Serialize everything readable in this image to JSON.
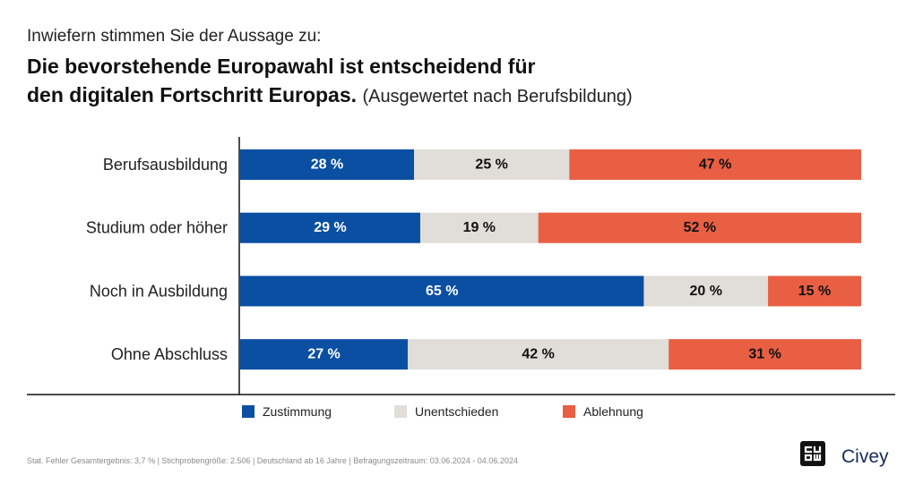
{
  "kicker": "Inwiefern stimmen Sie der Aussage zu:",
  "title_line1": "Die bevorstehende Europawahl ist entscheidend für",
  "title_line2": "den digitalen Fortschritt Europas.",
  "subtitle": "(Ausgewertet nach Berufsbildung)",
  "chart_data": {
    "type": "bar",
    "orientation": "horizontal",
    "stacked": true,
    "normalized_to": 100,
    "value_suffix": " %",
    "categories": [
      "Berufsausbildung",
      "Studium oder höher",
      "Noch in Ausbildung",
      "Ohne Abschluss"
    ],
    "series": [
      {
        "name": "Zustimmung",
        "values": [
          28,
          29,
          65,
          27
        ],
        "color": "#0a4fa2",
        "label_color": "#ffffff"
      },
      {
        "name": "Unentschieden",
        "values": [
          25,
          19,
          20,
          42
        ],
        "color": "#e1ddd9",
        "label_color": "#111111"
      },
      {
        "name": "Ablehnung",
        "values": [
          47,
          52,
          15,
          31
        ],
        "color": "#e85f44",
        "label_color": "#111111"
      }
    ],
    "legend_position": "bottom",
    "grid": false
  },
  "footer": "Stat. Fehler Gesamtergebnis: 3,7 % | Stichprobengröße: 2.506 | Deutschland ab 16 Jahre | Befragungszeitraum: 03.06.2024 - 04.06.2024",
  "brand": {
    "name": "Civey",
    "icon": "civey-logo-icon"
  }
}
